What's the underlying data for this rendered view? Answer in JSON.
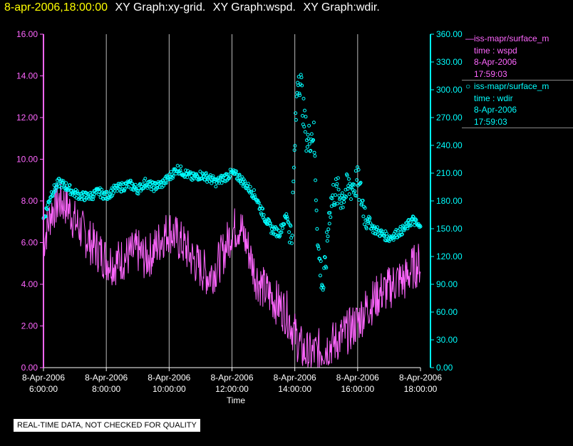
{
  "header": {
    "datetime": "8-apr-2006,18:00:00",
    "graphs": [
      "XY Graph:xy-grid.",
      "XY Graph:wspd.",
      "XY Graph:wdir."
    ]
  },
  "legend": [
    {
      "symbol": "line",
      "source": "iss-mapr/surface_m",
      "var": "time : wspd",
      "date": "8-Apr-2006",
      "time": "17:59:03",
      "color": "#ff66ff"
    },
    {
      "symbol": "circle",
      "source": "iss-mapr/surface_m",
      "var": "time : wdir",
      "date": "8-Apr-2006",
      "time": "17:59:03",
      "color": "#00ffff"
    }
  ],
  "notice": "REAL-TIME DATA, NOT CHECKED FOR QUALITY",
  "chart_data": {
    "type": "line",
    "xlabel": "Time",
    "x_ticks": [
      [
        "8-Apr-2006",
        "6:00:00"
      ],
      [
        "8-Apr-2006",
        "8:00:00"
      ],
      [
        "8-Apr-2006",
        "10:00:00"
      ],
      [
        "8-Apr-2006",
        "12:00:00"
      ],
      [
        "8-Apr-2006",
        "14:00:00"
      ],
      [
        "8-Apr-2006",
        "16:00:00"
      ],
      [
        "8-Apr-2006",
        "18:00:00"
      ]
    ],
    "x_range_hours": [
      6,
      18
    ],
    "y_left_ticks": [
      "0.00",
      "2.00",
      "4.00",
      "6.00",
      "8.00",
      "10.00",
      "12.00",
      "14.00",
      "16.00"
    ],
    "y_left_range": [
      0,
      16
    ],
    "y_right_ticks": [
      "0.00",
      "30.00",
      "60.00",
      "90.00",
      "120.00",
      "150.00",
      "180.00",
      "210.00",
      "240.00",
      "270.00",
      "300.00",
      "330.00",
      "360.00"
    ],
    "y_right_range": [
      0,
      360
    ],
    "grid": "vertical",
    "series": [
      {
        "name": "time : wspd",
        "axis": "left",
        "style": "line",
        "color": "#ff66ff",
        "x": [
          6.0,
          6.25,
          6.5,
          6.75,
          7.0,
          7.25,
          7.5,
          7.75,
          8.0,
          8.25,
          8.5,
          8.75,
          9.0,
          9.25,
          9.5,
          9.75,
          10.0,
          10.25,
          10.5,
          10.75,
          11.0,
          11.25,
          11.5,
          11.75,
          12.0,
          12.25,
          12.5,
          12.75,
          13.0,
          13.25,
          13.5,
          13.75,
          14.0,
          14.25,
          14.5,
          14.75,
          15.0,
          15.25,
          15.5,
          15.75,
          16.0,
          16.25,
          16.5,
          16.75,
          17.0,
          17.25,
          17.5,
          17.75,
          18.0
        ],
        "values": [
          6.0,
          7.5,
          8.0,
          7.8,
          7.0,
          6.5,
          6.0,
          5.6,
          5.2,
          5.0,
          5.2,
          5.4,
          5.6,
          5.2,
          5.6,
          6.2,
          6.6,
          6.2,
          5.8,
          5.2,
          4.8,
          4.4,
          4.8,
          5.6,
          6.6,
          6.8,
          5.8,
          4.4,
          3.8,
          3.4,
          3.0,
          2.6,
          1.6,
          0.8,
          0.6,
          0.8,
          1.0,
          1.2,
          1.5,
          1.8,
          2.2,
          2.8,
          3.2,
          3.6,
          3.8,
          4.2,
          4.2,
          4.8,
          5.0
        ]
      },
      {
        "name": "time : wdir",
        "axis": "right",
        "style": "circle",
        "color": "#00ffff",
        "x": [
          6.0,
          6.25,
          6.5,
          6.75,
          7.0,
          7.25,
          7.5,
          7.75,
          8.0,
          8.25,
          8.5,
          8.75,
          9.0,
          9.25,
          9.5,
          9.75,
          10.0,
          10.25,
          10.5,
          10.75,
          11.0,
          11.25,
          11.5,
          11.75,
          12.0,
          12.25,
          12.5,
          12.75,
          13.0,
          13.25,
          13.5,
          13.75,
          13.9,
          14.0,
          14.1,
          14.2,
          14.3,
          14.4,
          14.5,
          14.6,
          14.75,
          14.9,
          15.0,
          15.1,
          15.25,
          15.5,
          15.75,
          16.0,
          16.25,
          16.5,
          16.75,
          17.0,
          17.25,
          17.5,
          17.75,
          18.0
        ],
        "values": [
          160,
          188,
          200,
          195,
          188,
          185,
          185,
          190,
          185,
          192,
          195,
          198,
          192,
          200,
          195,
          198,
          205,
          215,
          210,
          205,
          208,
          205,
          200,
          205,
          210,
          205,
          195,
          185,
          165,
          150,
          145,
          165,
          140,
          240,
          320,
          305,
          265,
          245,
          250,
          255,
          125,
          85,
          120,
          170,
          190,
          185,
          195,
          200,
          165,
          150,
          145,
          140,
          145,
          150,
          160,
          150
        ]
      }
    ]
  }
}
